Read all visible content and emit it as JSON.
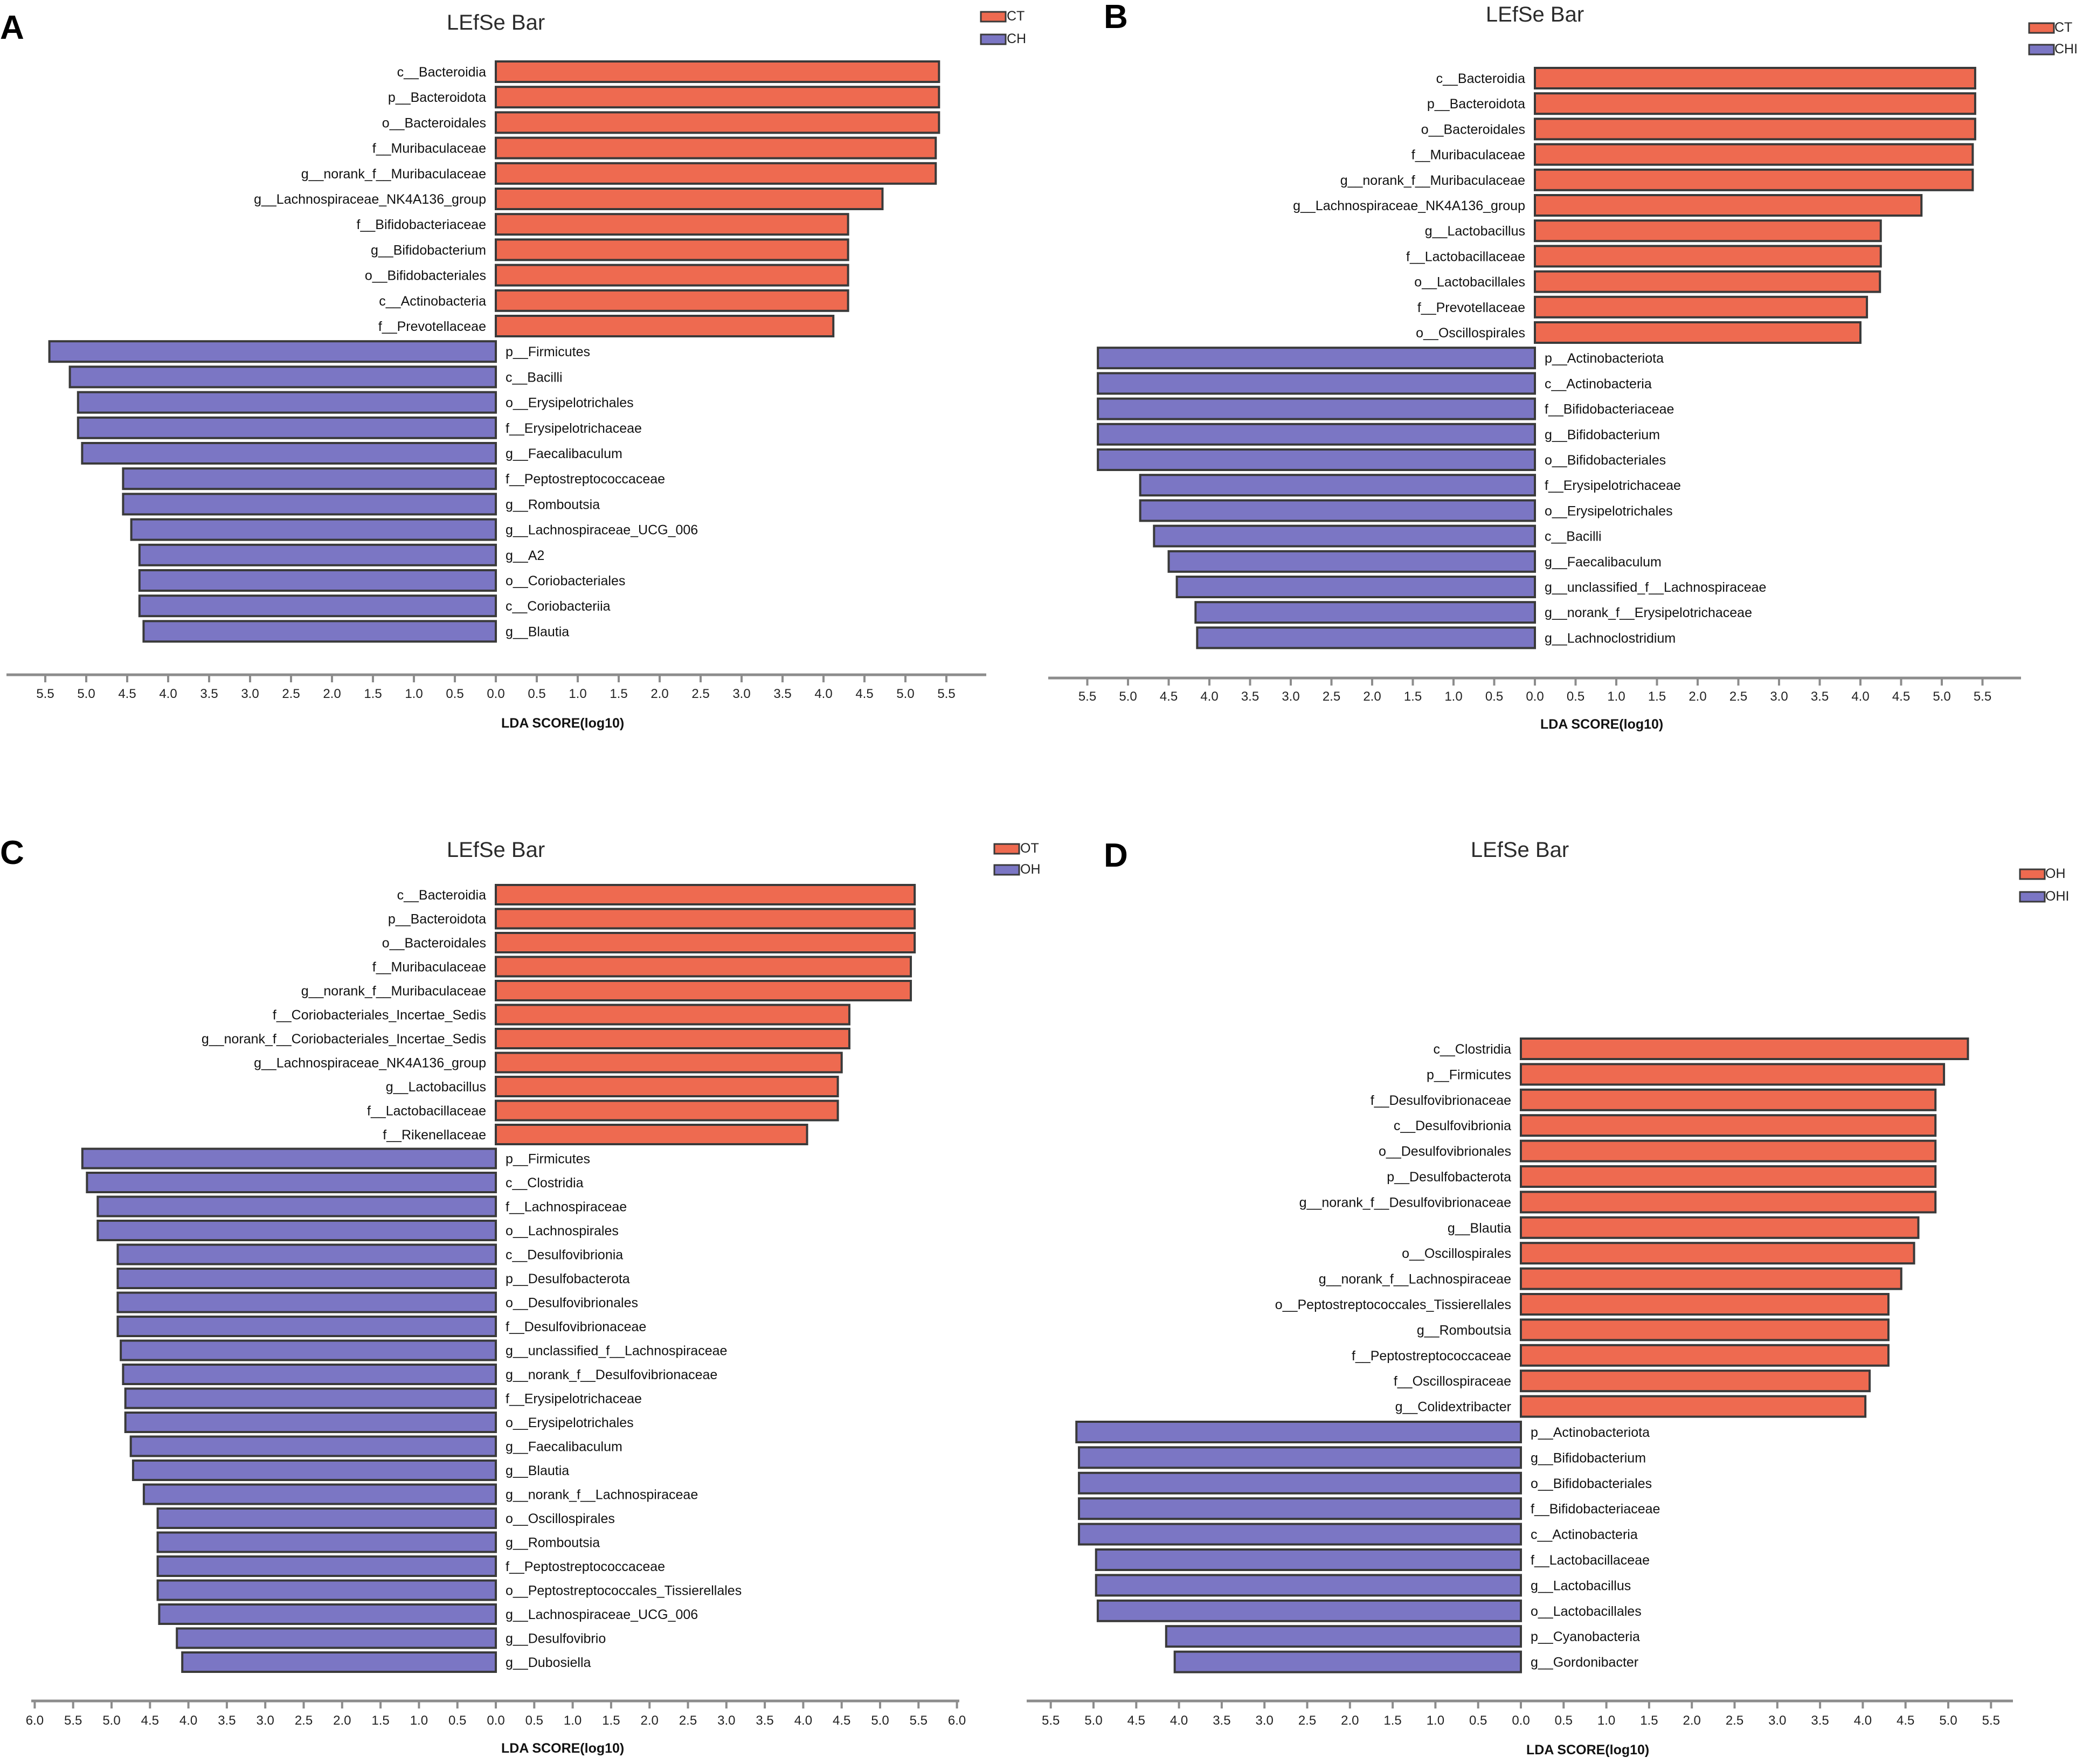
{
  "colors": {
    "enriched_first": "#EE6A50",
    "enriched_second": "#7B76C4",
    "bar_border": "#3a3a3a",
    "axis": "#8c8c8c"
  },
  "chart_data": [
    {
      "panel": "A",
      "type": "bar",
      "orientation": "horizontal-diverging",
      "title": "LEfSe Bar",
      "xlabel": "LDA SCORE(log10)",
      "xlim": [
        -5.5,
        5.5
      ],
      "tick_labels": [
        "5.5",
        "5.0",
        "4.5",
        "4.0",
        "3.5",
        "3.0",
        "2.5",
        "2.0",
        "1.5",
        "1.0",
        "0.5",
        "0.0",
        "0.5",
        "1.0",
        "1.5",
        "2.0",
        "2.5",
        "3.0",
        "3.5",
        "4.0",
        "4.5",
        "5.0",
        "5.5"
      ],
      "legend": [
        "CT",
        "CH"
      ],
      "series": [
        {
          "name": "CT",
          "categories": [
            "c__Bacteroidia",
            "p__Bacteroidota",
            "o__Bacteroidales",
            "f__Muribaculaceae",
            "g__norank_f__Muribaculaceae",
            "g__Lachnospiraceae_NK4A136_group",
            "f__Bifidobacteriaceae",
            "g__Bifidobacterium",
            "o__Bifidobacteriales",
            "c__Actinobacteria",
            "f__Prevotellaceae"
          ],
          "values": [
            5.41,
            5.41,
            5.41,
            5.37,
            5.37,
            4.72,
            4.3,
            4.3,
            4.3,
            4.3,
            4.12
          ]
        },
        {
          "name": "CH",
          "categories": [
            "p__Firmicutes",
            "c__Bacilli",
            "o__Erysipelotrichales",
            "f__Erysipelotrichaceae",
            "g__Faecalibaculum",
            "f__Peptostreptococcaceae",
            "g__Romboutsia",
            "g__Lachnospiraceae_UCG_006",
            "g__A2",
            "o__Coriobacteriales",
            "c__Coriobacteriia",
            "g__Blautia"
          ],
          "values": [
            5.45,
            5.2,
            5.1,
            5.1,
            5.05,
            4.55,
            4.55,
            4.45,
            4.35,
            4.35,
            4.35,
            4.3
          ]
        }
      ]
    },
    {
      "panel": "B",
      "type": "bar",
      "orientation": "horizontal-diverging",
      "title": "LEfSe Bar",
      "xlabel": "LDA SCORE(log10)",
      "xlim": [
        -5.5,
        5.5
      ],
      "tick_labels": [
        "5.5",
        "5.0",
        "4.5",
        "4.0",
        "3.5",
        "3.0",
        "2.5",
        "2.0",
        "1.5",
        "1.0",
        "0.5",
        "0.0",
        "0.5",
        "1.0",
        "1.5",
        "2.0",
        "2.5",
        "3.0",
        "3.5",
        "4.0",
        "4.5",
        "5.0",
        "5.5"
      ],
      "legend": [
        "CT",
        "CHI"
      ],
      "series": [
        {
          "name": "CT",
          "categories": [
            "c__Bacteroidia",
            "p__Bacteroidota",
            "o__Bacteroidales",
            "f__Muribaculaceae",
            "g__norank_f__Muribaculaceae",
            "g__Lachnospiraceae_NK4A136_group",
            "g__Lactobacillus",
            "f__Lactobacillaceae",
            "o__Lactobacillales",
            "f__Prevotellaceae",
            "o__Oscillospirales"
          ],
          "values": [
            5.41,
            5.41,
            5.41,
            5.38,
            5.38,
            4.75,
            4.25,
            4.25,
            4.24,
            4.08,
            4.0
          ]
        },
        {
          "name": "CHI",
          "categories": [
            "p__Actinobacteriota",
            "c__Actinobacteria",
            "f__Bifidobacteriaceae",
            "g__Bifidobacterium",
            "o__Bifidobacteriales",
            "f__Erysipelotrichaceae",
            "o__Erysipelotrichales",
            "c__Bacilli",
            "g__Faecalibaculum",
            "g__unclassified_f__Lachnospiraceae",
            "g__norank_f__Erysipelotrichaceae",
            "g__Lachnoclostridium"
          ],
          "values": [
            5.37,
            5.37,
            5.37,
            5.37,
            5.37,
            4.85,
            4.85,
            4.68,
            4.5,
            4.4,
            4.17,
            4.15
          ]
        }
      ]
    },
    {
      "panel": "C",
      "type": "bar",
      "orientation": "horizontal-diverging",
      "title": "LEfSe Bar",
      "xlabel": "LDA SCORE(log10)",
      "xlim": [
        -6.0,
        6.0
      ],
      "tick_labels": [
        "6.0",
        "5.5",
        "5.0",
        "4.5",
        "4.0",
        "3.5",
        "3.0",
        "2.5",
        "2.0",
        "1.5",
        "1.0",
        "0.5",
        "0.0",
        "0.5",
        "1.0",
        "1.5",
        "2.0",
        "2.5",
        "3.0",
        "3.5",
        "4.0",
        "4.5",
        "5.0",
        "5.5",
        "6.0"
      ],
      "legend": [
        "OT",
        "OH"
      ],
      "series": [
        {
          "name": "OT",
          "categories": [
            "c__Bacteroidia",
            "p__Bacteroidota",
            "o__Bacteroidales",
            "f__Muribaculaceae",
            "g__norank_f__Muribaculaceae",
            "f__Coriobacteriales_Incertae_Sedis",
            "g__norank_f__Coriobacteriales_Incertae_Sedis",
            "g__Lachnospiraceae_NK4A136_group",
            "g__Lactobacillus",
            "f__Lactobacillaceae",
            "f__Rikenellaceae"
          ],
          "values": [
            5.45,
            5.45,
            5.45,
            5.4,
            5.4,
            4.6,
            4.6,
            4.5,
            4.45,
            4.45,
            4.05
          ]
        },
        {
          "name": "OH",
          "categories": [
            "p__Firmicutes",
            "c__Clostridia",
            "f__Lachnospiraceae",
            "o__Lachnospirales",
            "c__Desulfovibrionia",
            "p__Desulfobacterota",
            "o__Desulfovibrionales",
            "f__Desulfovibrionaceae",
            "g__unclassified_f__Lachnospiraceae",
            "g__norank_f__Desulfovibrionaceae",
            "f__Erysipelotrichaceae",
            "o__Erysipelotrichales",
            "g__Faecalibaculum",
            "g__Blautia",
            "g__norank_f__Lachnospiraceae",
            "o__Oscillospirales",
            "g__Romboutsia",
            "f__Peptostreptococcaceae",
            "o__Peptostreptococcales_Tissierellales",
            "g__Lachnospiraceae_UCG_006",
            "g__Desulfovibrio",
            "g__Dubosiella"
          ],
          "values": [
            5.38,
            5.32,
            5.18,
            5.18,
            4.92,
            4.92,
            4.92,
            4.92,
            4.88,
            4.85,
            4.82,
            4.82,
            4.75,
            4.72,
            4.58,
            4.4,
            4.4,
            4.4,
            4.4,
            4.38,
            4.15,
            4.08
          ]
        }
      ]
    },
    {
      "panel": "D",
      "type": "bar",
      "orientation": "horizontal-diverging",
      "title": "LEfSe Bar",
      "xlabel": "LDA SCORE(log10)",
      "xlim": [
        -5.5,
        5.5
      ],
      "tick_labels": [
        "5.5",
        "5.0",
        "4.5",
        "4.0",
        "3.5",
        "3.0",
        "2.5",
        "2.0",
        "1.5",
        "1.0",
        "0.5",
        "0.0",
        "0.5",
        "1.0",
        "1.5",
        "2.0",
        "2.5",
        "3.0",
        "3.5",
        "4.0",
        "4.5",
        "5.0",
        "5.5"
      ],
      "legend": [
        "OH",
        "OHI"
      ],
      "series": [
        {
          "name": "OH",
          "categories": [
            "c__Clostridia",
            "p__Firmicutes",
            "f__Desulfovibrionaceae",
            "c__Desulfovibrionia",
            "o__Desulfovibrionales",
            "p__Desulfobacterota",
            "g__norank_f__Desulfovibrionaceae",
            "g__Blautia",
            "o__Oscillospirales",
            "g__norank_f__Lachnospiraceae",
            "o__Peptostreptococcales_Tissierellales",
            "g__Romboutsia",
            "f__Peptostreptococcaceae",
            "f__Oscillospiraceae",
            "g__Colidextribacter"
          ],
          "values": [
            5.23,
            4.95,
            4.85,
            4.85,
            4.85,
            4.85,
            4.85,
            4.65,
            4.6,
            4.45,
            4.3,
            4.3,
            4.3,
            4.08,
            4.03
          ]
        },
        {
          "name": "OHI",
          "categories": [
            "p__Actinobacteriota",
            "g__Bifidobacterium",
            "o__Bifidobacteriales",
            "f__Bifidobacteriaceae",
            "c__Actinobacteria",
            "f__Lactobacillaceae",
            "g__Lactobacillus",
            "o__Lactobacillales",
            "p__Cyanobacteria",
            "g__Gordonibacter"
          ],
          "values": [
            5.2,
            5.17,
            5.17,
            5.17,
            5.17,
            4.97,
            4.97,
            4.95,
            4.15,
            4.05
          ]
        }
      ]
    }
  ]
}
